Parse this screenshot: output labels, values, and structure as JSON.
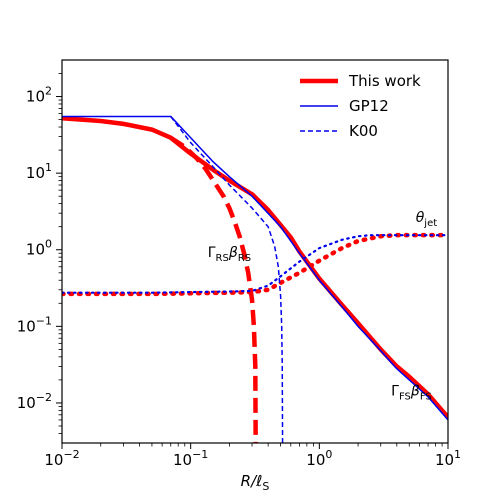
{
  "chart_data": {
    "type": "line",
    "xscale": "log",
    "yscale": "log",
    "xlim": [
      0.01,
      10
    ],
    "ylim": [
      0.003,
      300
    ],
    "xlabel": "R/ℓ_S",
    "xlabel_main": "R/ℓ",
    "xlabel_sub": "S",
    "x_ticks": [
      {
        "value": 0.01,
        "base": "10",
        "exp": "−2"
      },
      {
        "value": 0.1,
        "base": "10",
        "exp": "−1"
      },
      {
        "value": 1,
        "base": "10",
        "exp": "0"
      },
      {
        "value": 10,
        "base": "10",
        "exp": "1"
      }
    ],
    "y_ticks": [
      {
        "value": 0.01,
        "base": "10",
        "exp": "−2"
      },
      {
        "value": 0.1,
        "base": "10",
        "exp": "−1"
      },
      {
        "value": 1,
        "base": "10",
        "exp": "0"
      },
      {
        "value": 10,
        "base": "10",
        "exp": "1"
      },
      {
        "value": 100,
        "base": "10",
        "exp": "2"
      }
    ],
    "legend": {
      "position": "upper-right",
      "entries": [
        {
          "label": "This work",
          "color": "#ff0000",
          "style": "solid-thick"
        },
        {
          "label": "GP12",
          "color": "#0000ee",
          "style": "solid-thin"
        },
        {
          "label": "K00",
          "color": "#0000ee",
          "style": "dashed-thin"
        }
      ]
    },
    "annotations": [
      {
        "id": "rs",
        "main": "Γ",
        "sub1": "RS",
        "mid": "β",
        "sub2": "RS",
        "x": 0.2,
        "y": 0.8
      },
      {
        "id": "fs",
        "main": "Γ",
        "sub1": "FS",
        "mid": "β",
        "sub2": "FS",
        "x": 5.2,
        "y": 0.0125
      },
      {
        "id": "theta",
        "main": "θ",
        "sub1": "jet",
        "mid": "",
        "sub2": "",
        "x": 6.8,
        "y": 2.3
      }
    ],
    "series": [
      {
        "id": "this_work_fs",
        "color": "#ff0000",
        "width": 4.5,
        "dash": "none",
        "points": [
          [
            0.01,
            52
          ],
          [
            0.02,
            48
          ],
          [
            0.03,
            44
          ],
          [
            0.05,
            37
          ],
          [
            0.07,
            29
          ],
          [
            0.1,
            18
          ],
          [
            0.15,
            11
          ],
          [
            0.2,
            8
          ],
          [
            0.3,
            5.3
          ],
          [
            0.4,
            3.3
          ],
          [
            0.5,
            2.1
          ],
          [
            0.6,
            1.45
          ],
          [
            0.7,
            0.95
          ],
          [
            0.8,
            0.7
          ],
          [
            1,
            0.42
          ],
          [
            1.5,
            0.19
          ],
          [
            2,
            0.11
          ],
          [
            3,
            0.05
          ],
          [
            4,
            0.03
          ],
          [
            5,
            0.022
          ],
          [
            7,
            0.013
          ],
          [
            10,
            0.0065
          ]
        ]
      },
      {
        "id": "this_work_rs",
        "color": "#ff0000",
        "width": 4.5,
        "dash": "15,7",
        "points": [
          [
            0.07,
            29
          ],
          [
            0.09,
            22
          ],
          [
            0.11,
            16
          ],
          [
            0.13,
            11.5
          ],
          [
            0.15,
            8
          ],
          [
            0.18,
            5
          ],
          [
            0.2,
            3.5
          ],
          [
            0.22,
            2.3
          ],
          [
            0.24,
            1.5
          ],
          [
            0.26,
            0.9
          ],
          [
            0.28,
            0.5
          ],
          [
            0.3,
            0.22
          ],
          [
            0.31,
            0.1
          ],
          [
            0.318,
            0.03
          ],
          [
            0.32,
            0.003
          ]
        ]
      },
      {
        "id": "this_work_theta",
        "color": "#ff0000",
        "width": 4.5,
        "dash": "1.5,7",
        "points": [
          [
            0.01,
            0.265
          ],
          [
            0.05,
            0.265
          ],
          [
            0.1,
            0.27
          ],
          [
            0.2,
            0.275
          ],
          [
            0.3,
            0.28
          ],
          [
            0.4,
            0.3
          ],
          [
            0.5,
            0.37
          ],
          [
            0.7,
            0.5
          ],
          [
            1,
            0.72
          ],
          [
            1.5,
            1.05
          ],
          [
            2,
            1.3
          ],
          [
            3,
            1.5
          ],
          [
            4,
            1.55
          ],
          [
            6,
            1.55
          ],
          [
            10,
            1.55
          ]
        ]
      },
      {
        "id": "gp12_fs",
        "color": "#0000ee",
        "width": 1.5,
        "dash": "none",
        "points": [
          [
            0.01,
            55
          ],
          [
            0.07,
            55
          ],
          [
            0.1,
            29
          ],
          [
            0.15,
            14
          ],
          [
            0.2,
            9
          ],
          [
            0.3,
            5
          ],
          [
            0.5,
            2
          ],
          [
            0.7,
            0.9
          ],
          [
            1,
            0.4
          ],
          [
            1.5,
            0.18
          ],
          [
            2,
            0.1
          ],
          [
            3,
            0.048
          ],
          [
            4,
            0.028
          ],
          [
            5,
            0.02
          ],
          [
            7,
            0.012
          ],
          [
            10,
            0.006
          ]
        ]
      },
      {
        "id": "k00_rs",
        "color": "#0000ee",
        "width": 1.5,
        "dash": "5,3",
        "points": [
          [
            0.07,
            55
          ],
          [
            0.1,
            25
          ],
          [
            0.15,
            12
          ],
          [
            0.2,
            7
          ],
          [
            0.3,
            3.5
          ],
          [
            0.4,
            2
          ],
          [
            0.45,
            1.1
          ],
          [
            0.48,
            0.6
          ],
          [
            0.5,
            0.25
          ],
          [
            0.51,
            0.1
          ],
          [
            0.515,
            0.03
          ],
          [
            0.518,
            0.003
          ]
        ]
      },
      {
        "id": "k00_theta",
        "color": "#0000ee",
        "width": 2.2,
        "dash": "1.5,4.5",
        "points": [
          [
            0.01,
            0.275
          ],
          [
            0.05,
            0.275
          ],
          [
            0.1,
            0.28
          ],
          [
            0.2,
            0.285
          ],
          [
            0.3,
            0.29
          ],
          [
            0.4,
            0.34
          ],
          [
            0.5,
            0.45
          ],
          [
            0.7,
            0.7
          ],
          [
            1,
            1.05
          ],
          [
            1.5,
            1.35
          ],
          [
            2,
            1.5
          ],
          [
            2.5,
            1.55
          ],
          [
            4,
            1.55
          ],
          [
            10,
            1.55
          ]
        ]
      }
    ]
  }
}
